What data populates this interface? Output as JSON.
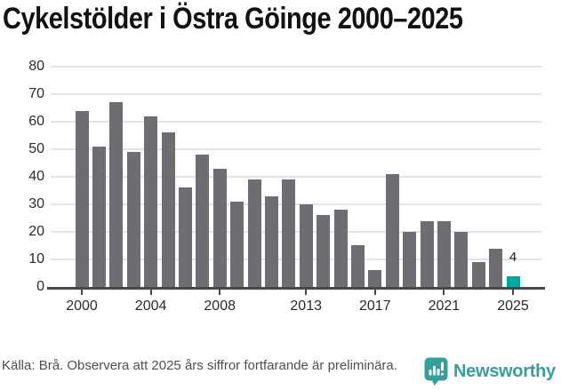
{
  "title": "Cykelstölder i Östra Göinge 2000–2025",
  "chart_data": {
    "type": "bar",
    "title": "Cykelstölder i Östra Göinge 2000–2025",
    "categories": [
      2000,
      2001,
      2002,
      2003,
      2004,
      2005,
      2006,
      2007,
      2008,
      2009,
      2010,
      2011,
      2012,
      2013,
      2014,
      2015,
      2016,
      2017,
      2018,
      2019,
      2020,
      2021,
      2022,
      2023,
      2024,
      2025
    ],
    "values": [
      64,
      51,
      67,
      49,
      62,
      56,
      36,
      48,
      43,
      31,
      39,
      33,
      39,
      30,
      26,
      28,
      15,
      6,
      41,
      20,
      24,
      24,
      20,
      9,
      14,
      4
    ],
    "highlight_year": 2025,
    "annotations": [
      {
        "year": 2025,
        "text": "4"
      }
    ],
    "xlabel": "",
    "ylabel": "",
    "ylim": [
      0,
      80
    ],
    "yticks": [
      0,
      10,
      20,
      30,
      40,
      50,
      60,
      70,
      80
    ],
    "xticks": [
      2000,
      2004,
      2008,
      2013,
      2017,
      2021,
      2025
    ],
    "grid": "horizontal",
    "legend": "none"
  },
  "colors": {
    "bar": "#6e6d72",
    "highlight": "#00a79c",
    "gridline": "#e4e4e4",
    "axis": "#48484c",
    "tick_label": "#2b2b2b",
    "title": "#111111",
    "footer_text": "#4f4f4f",
    "brand": "#35a09b"
  },
  "footer": {
    "source_note": "Källa: Brå. Observera att 2025 års siffror fortfarande är preliminära.",
    "brand_name": "Newsworthy"
  },
  "icons": {
    "brand_icon": "newsworthy-chart-bubble-icon"
  }
}
